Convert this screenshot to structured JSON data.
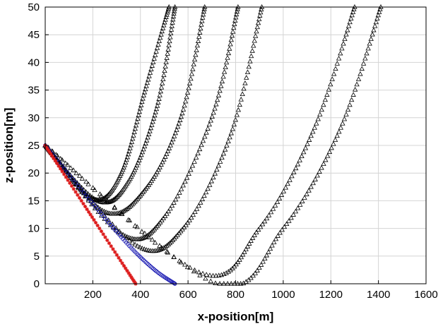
{
  "chart_data": {
    "type": "scatter",
    "title": "",
    "xlabel": "x-position[m]",
    "ylabel": "z-position[m]",
    "xlim": [
      0,
      1600
    ],
    "ylim": [
      0,
      50
    ],
    "xticks": [
      200,
      400,
      600,
      800,
      1000,
      1200,
      1400,
      1600
    ],
    "yticks": [
      0,
      5,
      10,
      15,
      20,
      25,
      30,
      35,
      40,
      45,
      50
    ],
    "grid": true,
    "legend": "none",
    "series": [
      {
        "marker": "triangle",
        "color": "#000000",
        "x": [
          0,
          200,
          320,
          420,
          520
        ],
        "y": [
          25,
          15.3,
          20,
          35,
          50
        ]
      },
      {
        "marker": "triangle",
        "color": "#000000",
        "x": [
          0,
          220,
          350,
          470,
          545
        ],
        "y": [
          25,
          15,
          18.5,
          32,
          50
        ]
      },
      {
        "marker": "triangle",
        "color": "#000000",
        "x": [
          0,
          250,
          420,
          570,
          670
        ],
        "y": [
          25,
          13,
          17,
          30,
          50
        ]
      },
      {
        "marker": "triangle",
        "color": "#000000",
        "x": [
          0,
          320,
          500,
          700,
          810
        ],
        "y": [
          25,
          9,
          12,
          30,
          50
        ]
      },
      {
        "marker": "triangle",
        "color": "#000000",
        "x": [
          0,
          380,
          580,
          780,
          910
        ],
        "y": [
          25,
          7,
          10,
          27,
          50
        ]
      },
      {
        "marker": "triangle",
        "color": "#000000",
        "x": [
          0,
          650,
          900,
          1130,
          1300
        ],
        "y": [
          25,
          2,
          10,
          28,
          50
        ]
      },
      {
        "marker": "triangle",
        "color": "#000000",
        "x": [
          0,
          720,
          1000,
          1240,
          1410
        ],
        "y": [
          25,
          0,
          10,
          28,
          50
        ]
      },
      {
        "marker": "circle",
        "color": "#1f1fb4",
        "x": [
          0,
          200,
          350,
          460,
          545
        ],
        "y": [
          25,
          14.5,
          7,
          2.5,
          0
        ]
      },
      {
        "marker": "star",
        "color": "#dd1c1c",
        "x": [
          0,
          190,
          380
        ],
        "y": [
          25,
          12.5,
          0
        ]
      }
    ]
  }
}
